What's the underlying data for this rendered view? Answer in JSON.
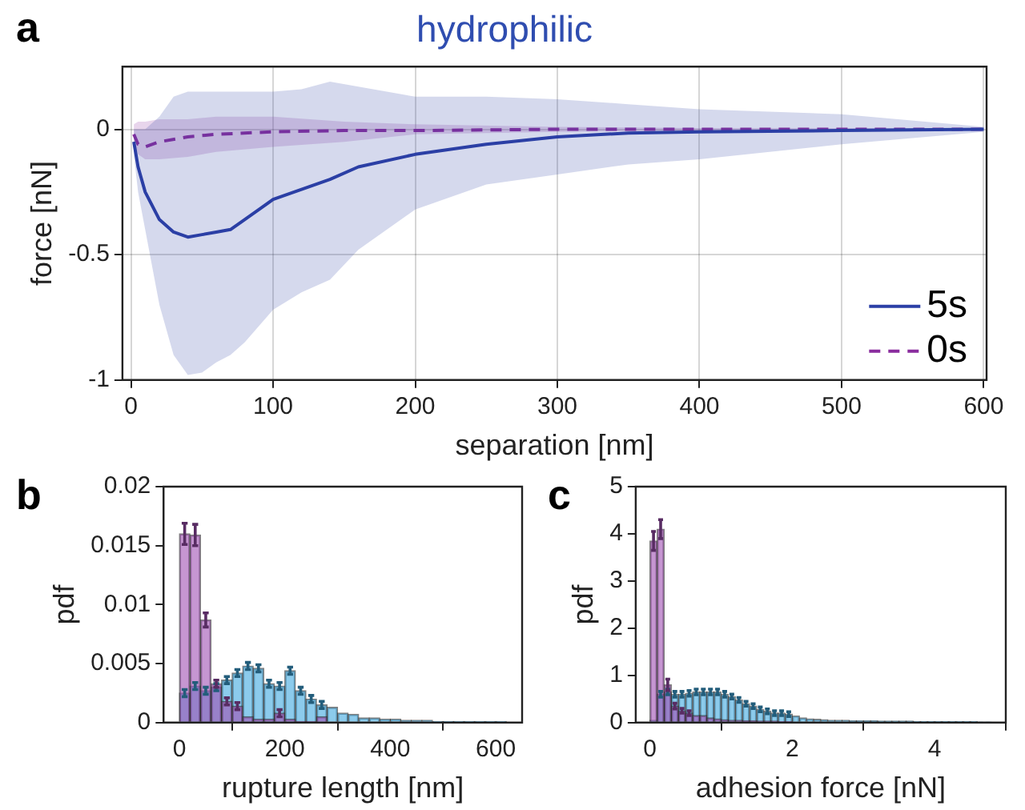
{
  "chart_data": [
    {
      "type": "line",
      "title": "hydrophilic",
      "xlabel": "separation [nm]",
      "ylabel": "force [nN]",
      "annotations": [
        "a"
      ],
      "xlim": [
        -6,
        602
      ],
      "ylim": [
        -1,
        0.25
      ],
      "xticks": [
        0,
        100,
        200,
        300,
        400,
        500,
        600
      ],
      "yticks": [
        -1,
        -0.5,
        0
      ],
      "grid": true,
      "legend": "bottom right",
      "series": [
        {
          "name": "5s",
          "color": "#2b3fa6",
          "line_style": "solid",
          "x": [
            2,
            5,
            10,
            20,
            30,
            40,
            50,
            60,
            70,
            80,
            100,
            120,
            140,
            160,
            200,
            250,
            300,
            350,
            400,
            500,
            600
          ],
          "values": [
            -0.05,
            -0.15,
            -0.25,
            -0.36,
            -0.41,
            -0.43,
            -0.42,
            -0.41,
            -0.4,
            -0.36,
            -0.28,
            -0.24,
            -0.2,
            -0.15,
            -0.1,
            -0.06,
            -0.03,
            -0.015,
            -0.01,
            -0.005,
            0
          ],
          "lower": [
            -0.1,
            -0.25,
            -0.4,
            -0.7,
            -0.9,
            -0.98,
            -0.97,
            -0.93,
            -0.9,
            -0.85,
            -0.72,
            -0.65,
            -0.6,
            -0.48,
            -0.32,
            -0.22,
            -0.18,
            -0.14,
            -0.12,
            -0.06,
            -0.01
          ],
          "upper": [
            0,
            0,
            0,
            0.05,
            0.13,
            0.15,
            0.15,
            0.15,
            0.15,
            0.15,
            0.15,
            0.16,
            0.19,
            0.17,
            0.13,
            0.13,
            0.12,
            0.1,
            0.08,
            0.06,
            0.01
          ]
        },
        {
          "name": "0s",
          "color": "#8a2d9e",
          "line_style": "dashed",
          "x": [
            2,
            5,
            10,
            20,
            40,
            60,
            100,
            150,
            200,
            300,
            400,
            500,
            600
          ],
          "values": [
            -0.02,
            -0.06,
            -0.07,
            -0.05,
            -0.03,
            -0.02,
            -0.01,
            -0.005,
            -0.005,
            0,
            0,
            0,
            0
          ],
          "lower": [
            -0.05,
            -0.1,
            -0.12,
            -0.12,
            -0.11,
            -0.09,
            -0.07,
            -0.05,
            -0.02,
            -0.01,
            -0.005,
            -0.005,
            -0.005
          ],
          "upper": [
            0.02,
            0.03,
            0.03,
            0.04,
            0.04,
            0.05,
            0.05,
            0.03,
            0.02,
            0.01,
            0.005,
            0.005,
            0.005
          ]
        }
      ]
    },
    {
      "type": "histogram",
      "xlabel": "rupture length [nm]",
      "ylabel": "pdf",
      "annotations": [
        "b"
      ],
      "xlim": [
        -30,
        650
      ],
      "ylim": [
        0,
        0.02
      ],
      "xticks": [
        0,
        200,
        400,
        600
      ],
      "yticks": [
        0,
        0.005,
        0.01,
        0.015,
        0.02
      ],
      "bins": [
        0,
        20,
        40,
        60,
        80,
        100,
        120,
        140,
        160,
        180,
        200,
        220,
        240,
        260,
        280,
        300,
        320,
        340,
        360,
        380,
        400,
        420,
        440,
        460,
        480,
        500,
        520,
        540,
        560,
        580,
        600,
        620
      ],
      "series": [
        {
          "color": "#3fa9e0",
          "values": [
            0.0025,
            0.0031,
            0.0027,
            0.003,
            0.0036,
            0.0042,
            0.0048,
            0.0046,
            0.0033,
            0.0031,
            0.0044,
            0.0027,
            0.002,
            0.0015,
            0.0013,
            0.0008,
            0.0007,
            0.0004,
            0.0004,
            0.0003,
            0.0003,
            0.0002,
            0.0002,
            0.0002,
            0.0001,
            0.0001,
            0.0001,
            0.0001,
            0.0001,
            0.0001,
            0.0001
          ],
          "errors": [
            0.0003,
            0.0003,
            0.0003,
            0.0003,
            0.0003,
            0.0003,
            0.0003,
            0.0003,
            0.0003,
            0.0003,
            0.0003,
            0.0003,
            0.0003,
            0.0003,
            null,
            null,
            null,
            null,
            null,
            null,
            null,
            null,
            null,
            null,
            null,
            null,
            null,
            null,
            null,
            null,
            null
          ]
        },
        {
          "color": "#a050b4",
          "values": [
            0.016,
            0.0159,
            0.0087,
            0.0033,
            0.0018,
            0.0014,
            0.0005,
            0.0003,
            0.0003,
            0.0008,
            0.0003,
            0.0001,
            0.0001,
            0.0005,
            0,
            0,
            0,
            0,
            0,
            0,
            0,
            0,
            0,
            0,
            0,
            0,
            0,
            0,
            0,
            0,
            0
          ],
          "errors": [
            0.0009,
            0.0009,
            0.0006,
            0.0003,
            0.0003,
            0.0003,
            null,
            null,
            null,
            0.0003,
            null,
            null,
            null,
            null,
            null,
            null,
            null,
            null,
            null,
            null,
            null,
            null,
            null,
            null,
            null,
            null,
            null,
            null,
            null,
            null,
            null
          ]
        }
      ]
    },
    {
      "type": "histogram",
      "xlabel": "adhesion force [nN]",
      "ylabel": "pdf",
      "annotations": [
        "c"
      ],
      "xlim": [
        -0.2,
        5
      ],
      "ylim": [
        0,
        5
      ],
      "xticks": [
        0,
        2,
        4
      ],
      "yticks": [
        0,
        1,
        2,
        3,
        4,
        5
      ],
      "bins": [
        0,
        0.1,
        0.2,
        0.3,
        0.4,
        0.5,
        0.6,
        0.7,
        0.8,
        0.9,
        1,
        1.1,
        1.2,
        1.3,
        1.4,
        1.5,
        1.6,
        1.7,
        1.8,
        1.9,
        2,
        2.1,
        2.2,
        2.3,
        2.4,
        2.5,
        2.6,
        2.7,
        2.8,
        2.9,
        3,
        3.1,
        3.2,
        3.3,
        3.4,
        3.5,
        3.6,
        3.7,
        3.8,
        3.9,
        4,
        4.1,
        4.2,
        4.3,
        4.4,
        4.5,
        4.6,
        4.7,
        4.8
      ],
      "series": [
        {
          "color": "#3fa9e0",
          "values": [
            0.05,
            0.6,
            0.65,
            0.6,
            0.6,
            0.62,
            0.65,
            0.65,
            0.65,
            0.65,
            0.6,
            0.55,
            0.48,
            0.4,
            0.35,
            0.28,
            0.24,
            0.2,
            0.2,
            0.18,
            0.14,
            0.1,
            0.08,
            0.07,
            0.06,
            0.05,
            0.05,
            0.05,
            0.04,
            0.04,
            0.04,
            0.04,
            0.03,
            0.03,
            0.03,
            0.03,
            0.03,
            0.02,
            0.02,
            0.02,
            0.02,
            0.02,
            0.02,
            0.02,
            0.02,
            0.02,
            0.01,
            0.01
          ],
          "errors": [
            null,
            0.06,
            0.06,
            0.06,
            0.06,
            0.06,
            0.06,
            0.06,
            0.06,
            0.06,
            0.06,
            0.05,
            0.05,
            0.05,
            0.05,
            0.05,
            0.05,
            0.05,
            0.05,
            0.05,
            null,
            null,
            null,
            null,
            null,
            null,
            null,
            null,
            null,
            null,
            null,
            null,
            null,
            null,
            null,
            null,
            null,
            null,
            null,
            null,
            null,
            null,
            null,
            null,
            null,
            null,
            null,
            null
          ]
        },
        {
          "color": "#a050b4",
          "values": [
            3.85,
            4.1,
            0.8,
            0.35,
            0.25,
            0.2,
            0.15,
            0.15,
            0.1,
            0.08,
            0.06,
            0.05,
            0.05,
            0.04,
            0.04,
            0.03,
            0.03,
            0.03,
            0.02,
            0.02,
            0,
            0,
            0,
            0,
            0,
            0,
            0,
            0,
            0,
            0,
            0,
            0,
            0,
            0,
            0,
            0,
            0,
            0,
            0,
            0,
            0,
            0,
            0,
            0,
            0,
            0,
            0,
            0
          ],
          "errors": [
            0.2,
            0.2,
            0.12,
            0.06,
            0.05,
            0.05,
            null,
            null,
            null,
            null,
            null,
            null,
            null,
            null,
            null,
            null,
            null,
            null,
            null,
            null,
            null,
            null,
            null,
            null,
            null,
            null,
            null,
            null,
            null,
            null,
            null,
            null,
            null,
            null,
            null,
            null,
            null,
            null,
            null,
            null,
            null,
            null,
            null,
            null,
            null,
            null,
            null,
            null
          ]
        }
      ]
    }
  ]
}
